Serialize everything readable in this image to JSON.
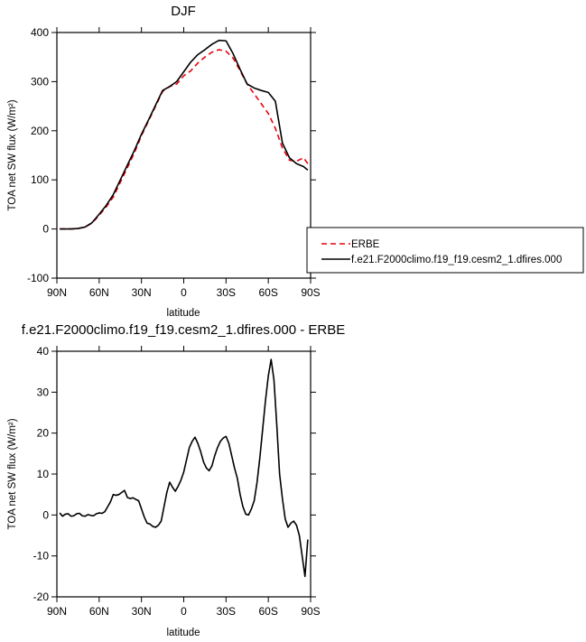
{
  "chart_data": [
    {
      "type": "line",
      "title": "DJF",
      "xlabel": "latitude",
      "ylabel": "TOA net SW flux (W/m²)",
      "xlim": [
        -90,
        90
      ],
      "ylim": [
        -100,
        400
      ],
      "x_tick_values": [
        -90,
        -60,
        -30,
        0,
        30,
        60,
        90
      ],
      "x_tick_labels": [
        "90N",
        "60N",
        "30N",
        "0",
        "30S",
        "60S",
        "90S"
      ],
      "y_ticks": [
        -100,
        0,
        100,
        200,
        300,
        400
      ],
      "legend": {
        "placement": "right",
        "entries": [
          "ERBE",
          "f.e21.F2000climo.f19_f19.cesm2_1.dfires.000"
        ]
      },
      "series": [
        {
          "name": "ERBE",
          "color": "#e8000b",
          "style": "dashed",
          "x": [
            -88,
            -80,
            -75,
            -70,
            -65,
            -60,
            -55,
            -50,
            -45,
            -40,
            -35,
            -30,
            -25,
            -20,
            -15,
            -10,
            -5,
            0,
            5,
            10,
            15,
            20,
            25,
            30,
            35,
            40,
            45,
            50,
            55,
            60,
            65,
            70,
            75,
            80,
            85,
            88
          ],
          "values": [
            0,
            0,
            1,
            4,
            12,
            28,
            45,
            65,
            95,
            125,
            155,
            190,
            220,
            250,
            280,
            290,
            295,
            312,
            322,
            338,
            350,
            360,
            365,
            362,
            348,
            322,
            295,
            275,
            255,
            235,
            205,
            165,
            140,
            138,
            145,
            133
          ]
        },
        {
          "name": "f.e21.F2000climo.f19_f19.cesm2_1.dfires.000",
          "color": "#000000",
          "style": "solid",
          "x": [
            -88,
            -80,
            -75,
            -70,
            -65,
            -60,
            -55,
            -50,
            -45,
            -40,
            -35,
            -30,
            -25,
            -20,
            -15,
            -10,
            -5,
            0,
            5,
            10,
            15,
            20,
            25,
            30,
            35,
            40,
            45,
            50,
            55,
            60,
            65,
            70,
            75,
            80,
            85,
            88
          ],
          "values": [
            0,
            0,
            1,
            4,
            13,
            30,
            48,
            70,
            100,
            130,
            160,
            193,
            222,
            252,
            282,
            290,
            300,
            320,
            340,
            355,
            365,
            376,
            384,
            383,
            357,
            325,
            295,
            287,
            282,
            278,
            260,
            175,
            145,
            133,
            127,
            120
          ]
        }
      ]
    },
    {
      "type": "line",
      "title": "f.e21.F2000climo.f19_f19.cesm2_1.dfires.000 - ERBE",
      "xlabel": "latitude",
      "ylabel": "TOA net SW flux (W/m²)",
      "xlim": [
        -90,
        90
      ],
      "ylim": [
        -20,
        40
      ],
      "x_tick_values": [
        -90,
        -60,
        -30,
        0,
        30,
        60,
        90
      ],
      "x_tick_labels": [
        "90N",
        "60N",
        "30N",
        "0",
        "30S",
        "60S",
        "90S"
      ],
      "y_ticks": [
        -20,
        -10,
        0,
        10,
        20,
        30,
        40
      ],
      "series": [
        {
          "color": "#000000",
          "style": "solid",
          "x": [
            -88,
            -86,
            -84,
            -82,
            -80,
            -78,
            -76,
            -74,
            -72,
            -70,
            -68,
            -66,
            -64,
            -62,
            -60,
            -58,
            -56,
            -54,
            -52,
            -50,
            -48,
            -46,
            -44,
            -42,
            -40,
            -38,
            -36,
            -34,
            -32,
            -30,
            -28,
            -26,
            -24,
            -22,
            -20,
            -18,
            -16,
            -14,
            -12,
            -10,
            -8,
            -6,
            -4,
            -2,
            0,
            2,
            4,
            6,
            8,
            10,
            12,
            14,
            16,
            18,
            20,
            22,
            24,
            26,
            28,
            30,
            32,
            34,
            36,
            38,
            40,
            42,
            44,
            46,
            48,
            50,
            52,
            54,
            56,
            58,
            60,
            62,
            64,
            66,
            68,
            70,
            72,
            74,
            76,
            78,
            80,
            82,
            84,
            86,
            88
          ],
          "values": [
            0.5,
            -0.3,
            0.2,
            0.3,
            -0.3,
            -0.2,
            0.3,
            0.4,
            -0.2,
            -0.3,
            0.1,
            -0.1,
            -0.2,
            0.3,
            0.5,
            0.4,
            0.8,
            2.0,
            3.2,
            5.0,
            4.8,
            5.0,
            5.5,
            6.0,
            4.3,
            4.0,
            4.2,
            3.8,
            3.5,
            1.5,
            -0.5,
            -2.0,
            -2.2,
            -2.8,
            -3.0,
            -2.5,
            -1.5,
            2.0,
            5.5,
            8.0,
            6.8,
            5.8,
            7.0,
            8.5,
            10.5,
            13.5,
            16.5,
            18.0,
            19.0,
            17.5,
            15.5,
            13.0,
            11.5,
            10.8,
            12.0,
            14.5,
            16.5,
            18.0,
            18.8,
            19.2,
            17.5,
            14.5,
            11.5,
            9.0,
            5.0,
            2.0,
            0.2,
            0.0,
            1.5,
            3.5,
            8.0,
            14.0,
            21.0,
            28.0,
            34.0,
            38.0,
            33.0,
            22.0,
            10.0,
            4.0,
            -1.0,
            -3.0,
            -2.0,
            -1.5,
            -2.5,
            -5.0,
            -10.0,
            -15.0,
            -6.0
          ]
        }
      ]
    }
  ]
}
